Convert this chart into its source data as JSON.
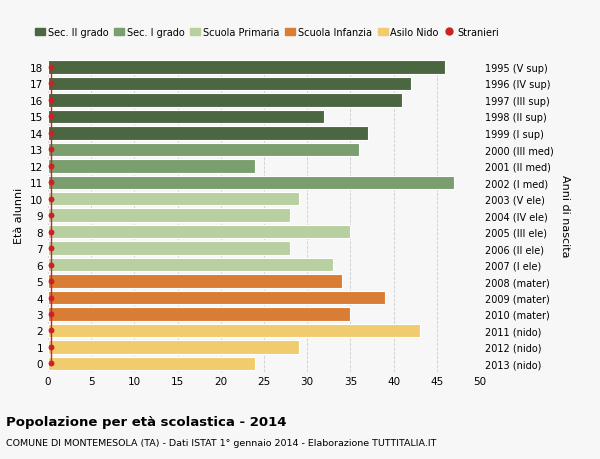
{
  "ages": [
    18,
    17,
    16,
    15,
    14,
    13,
    12,
    11,
    10,
    9,
    8,
    7,
    6,
    5,
    4,
    3,
    2,
    1,
    0
  ],
  "right_labels": [
    "1995 (V sup)",
    "1996 (IV sup)",
    "1997 (III sup)",
    "1998 (II sup)",
    "1999 (I sup)",
    "2000 (III med)",
    "2001 (II med)",
    "2002 (I med)",
    "2003 (V ele)",
    "2004 (IV ele)",
    "2005 (III ele)",
    "2006 (II ele)",
    "2007 (I ele)",
    "2008 (mater)",
    "2009 (mater)",
    "2010 (mater)",
    "2011 (nido)",
    "2012 (nido)",
    "2013 (nido)"
  ],
  "bar_values": [
    46,
    42,
    41,
    32,
    37,
    36,
    24,
    47,
    29,
    28,
    35,
    28,
    33,
    34,
    39,
    35,
    43,
    29,
    24
  ],
  "bar_colors": [
    "#4a6741",
    "#4a6741",
    "#4a6741",
    "#4a6741",
    "#4a6741",
    "#7a9e6e",
    "#7a9e6e",
    "#7a9e6e",
    "#b8cfa0",
    "#b8cfa0",
    "#b8cfa0",
    "#b8cfa0",
    "#b8cfa0",
    "#d97d35",
    "#d97d35",
    "#d97d35",
    "#f0cc6e",
    "#f0cc6e",
    "#f0cc6e"
  ],
  "legend_labels": [
    "Sec. II grado",
    "Sec. I grado",
    "Scuola Primaria",
    "Scuola Infanzia",
    "Asilo Nido",
    "Stranieri"
  ],
  "legend_colors": [
    "#4a6741",
    "#7a9e6e",
    "#b8cfa0",
    "#d97d35",
    "#f0cc6e",
    "#cc2222"
  ],
  "ylabel": "Età alunni",
  "ylabel_right": "Anni di nascita",
  "title": "Popolazione per età scolastica - 2014",
  "subtitle": "COMUNE DI MONTEMESOLA (TA) - Dati ISTAT 1° gennaio 2014 - Elaborazione TUTTITALIA.IT",
  "xlim": [
    0,
    50
  ],
  "xticks": [
    0,
    5,
    10,
    15,
    20,
    25,
    30,
    35,
    40,
    45,
    50
  ],
  "background_color": "#f7f7f7",
  "bar_height": 0.82,
  "stranieri_color": "#cc2222"
}
